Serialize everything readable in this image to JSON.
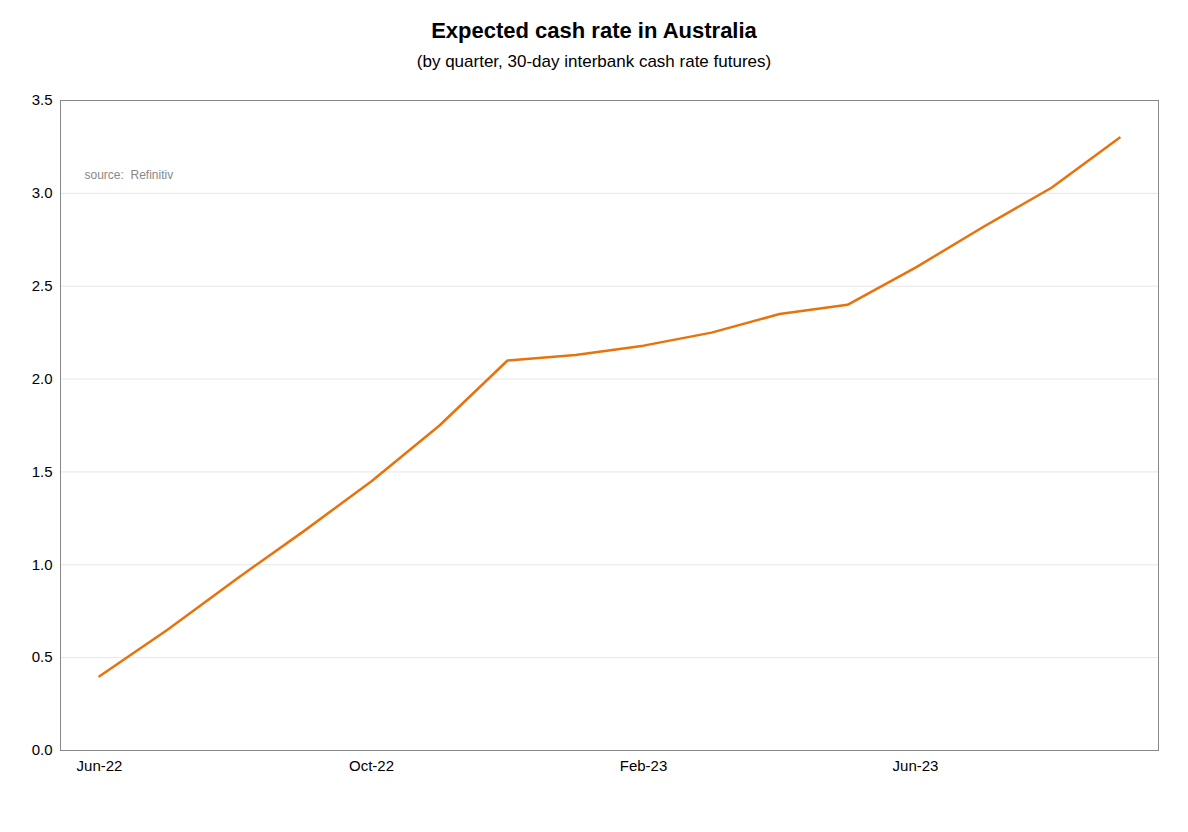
{
  "chart_data": {
    "type": "line",
    "title": "Expected cash rate in Australia",
    "subtitle": "(by quarter, 30-day interbank cash rate futures)",
    "source": "source:  Refinitiv",
    "categories": [
      "Jun-22",
      null,
      null,
      null,
      "Oct-22",
      null,
      null,
      null,
      "Feb-23",
      null,
      null,
      null,
      "Jun-23",
      null,
      null,
      null
    ],
    "values": [
      0.4,
      0.65,
      0.92,
      1.18,
      1.45,
      1.75,
      2.1,
      2.13,
      2.18,
      2.25,
      2.35,
      2.4,
      2.6,
      2.82,
      3.03,
      3.3
    ],
    "color": "#E8720C",
    "ylim": [
      0.0,
      3.5
    ],
    "yticks": [
      {
        "value": 0.0,
        "label": "0.0"
      },
      0.5,
      {
        "value": 1.0,
        "label": "1.0"
      },
      1.5,
      {
        "value": 2.0,
        "label": "2.0"
      },
      2.5,
      {
        "value": 3.0,
        "label": "3.0"
      },
      3.5
    ],
    "grid": true
  }
}
